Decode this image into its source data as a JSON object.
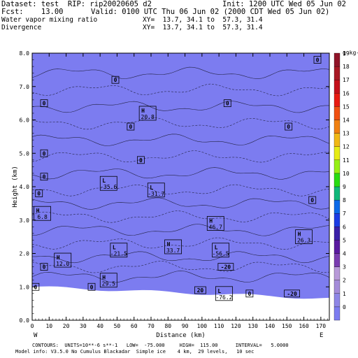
{
  "header": {
    "dataset": "Dataset: test  RIP: rip20020605 d2",
    "init": "Init: 1200 UTC Wed 05 Jun 02",
    "fcst": "Fcst:    13.00",
    "valid": "Valid: 0100 UTC Thu 06 Jun 02 (2000 CDT Wed 05 Jun 02)",
    "field1": "Water vapor mixing ratio",
    "xy1": "XY=  13.7, 34.1 to  57.3, 31.4",
    "field2": "Divergence",
    "xy2": "XY=  13.7, 34.1 to  57.3, 31.4"
  },
  "footer": {
    "line1": "CONTOURS:  UNITS=10**-6 s**-1   LOW=  -75.000     HIGH=  115.00      INTERVAL=   5.0000",
    "line2": "Model info: V3.5.0 No Cumulus Blackadar  Simple ice    4 km,  29 levels,   10 sec"
  },
  "colorbar": {
    "unit": "g kg-1",
    "labels": [
      "0",
      "1",
      "2",
      "3",
      "4",
      "5",
      "6",
      "7",
      "8",
      "9",
      "10",
      "11",
      "12",
      "13",
      "14",
      "15",
      "16",
      "17",
      "18",
      "19"
    ],
    "colors": [
      "#7c7cf0",
      "#8e86e6",
      "#a48cd9",
      "#b89ad8",
      "#7a3cb0",
      "#5a1aa0",
      "#3a20a8",
      "#1c3ce4",
      "#0c6ae8",
      "#10b87a",
      "#28dc10",
      "#96f014",
      "#e6ec14",
      "#f0b814",
      "#f08010",
      "#f05010",
      "#e81a10",
      "#c4101a",
      "#a81824",
      "#901428"
    ],
    "_note": "colors listed bottom (0) to top"
  },
  "chart_data": {
    "type": "heatmap",
    "title": "",
    "xlabel": "Distance (km)",
    "ylabel": "Height (km)",
    "xlim": [
      0,
      175
    ],
    "ylim": [
      0,
      8
    ],
    "xticks": [
      "0",
      "10",
      "20",
      "30",
      "40",
      "50",
      "60",
      "70",
      "80",
      "90",
      "100",
      "110",
      "120",
      "130",
      "140",
      "150",
      "160",
      "170"
    ],
    "yticks": [
      "0.0",
      "1.0",
      "2.0",
      "3.0",
      "4.0",
      "5.0",
      "6.0",
      "7.0",
      "8.0"
    ],
    "x_end_labels": {
      "left": "W",
      "right": "E"
    },
    "bands": [
      {
        "y0": 0.0,
        "y1": 1.8,
        "color": "#96f014"
      },
      {
        "y0": 1.8,
        "y1": 2.6,
        "color": "#28dc10"
      },
      {
        "y0": 2.6,
        "y1": 3.0,
        "color": "#10b87a"
      },
      {
        "y0": 3.0,
        "y1": 3.3,
        "color": "#0c6ae8"
      },
      {
        "y0": 3.3,
        "y1": 3.55,
        "color": "#1c3ce4"
      },
      {
        "y0": 3.55,
        "y1": 3.8,
        "color": "#3a20a8"
      },
      {
        "y0": 3.8,
        "y1": 4.4,
        "color": "#7a3cb0"
      },
      {
        "y0": 4.4,
        "y1": 5.0,
        "color": "#a48cd9"
      },
      {
        "y0": 5.0,
        "y1": 5.6,
        "color": "#8e86e6"
      },
      {
        "y0": 5.6,
        "y1": 6.5,
        "color": "#a48cd9"
      },
      {
        "y0": 6.5,
        "y1": 8.0,
        "color": "#7c7cf0"
      }
    ],
    "markers": [
      {
        "x": 168,
        "y": 7.8,
        "label": "0"
      },
      {
        "x": 49,
        "y": 7.2,
        "label": "0"
      },
      {
        "x": 7,
        "y": 6.5,
        "label": "0"
      },
      {
        "x": 115,
        "y": 6.5,
        "label": "0"
      },
      {
        "x": 58,
        "y": 5.8,
        "label": "0"
      },
      {
        "x": 151,
        "y": 5.8,
        "label": "0"
      },
      {
        "x": 7,
        "y": 5.0,
        "label": "0"
      },
      {
        "x": 64,
        "y": 4.8,
        "label": "0"
      },
      {
        "x": 7,
        "y": 4.3,
        "label": "0"
      },
      {
        "x": 4,
        "y": 3.8,
        "label": "0"
      },
      {
        "x": 165,
        "y": 3.6,
        "label": "0"
      },
      {
        "x": 45,
        "y": 4.1,
        "label": "L",
        "value": "-35.6"
      },
      {
        "x": 73,
        "y": 3.9,
        "label": "L",
        "value": "-31.7"
      },
      {
        "x": 68,
        "y": 6.2,
        "label": "H",
        "value": "20.8"
      },
      {
        "x": 6,
        "y": 3.2,
        "label": "H",
        "value": "6.8"
      },
      {
        "x": 108,
        "y": 2.9,
        "label": "H",
        "value": "46.7"
      },
      {
        "x": 160,
        "y": 2.5,
        "label": "H",
        "value": "26.3"
      },
      {
        "x": 51,
        "y": 2.1,
        "label": "L",
        "value": "-21.5"
      },
      {
        "x": 83,
        "y": 2.2,
        "label": "H",
        "value": "33.7"
      },
      {
        "x": 111,
        "y": 2.1,
        "label": "L",
        "value": "-56.5"
      },
      {
        "x": 18,
        "y": 1.8,
        "label": "H",
        "value": "12.0"
      },
      {
        "x": 7,
        "y": 1.6,
        "label": "0"
      },
      {
        "x": 114,
        "y": 1.6,
        "label": "-20"
      },
      {
        "x": 45,
        "y": 1.2,
        "label": "H",
        "value": "29.5"
      },
      {
        "x": 2,
        "y": 1.0,
        "label": "0"
      },
      {
        "x": 35,
        "y": 1.0,
        "label": "0"
      },
      {
        "x": 99,
        "y": 0.9,
        "label": "20"
      },
      {
        "x": 113,
        "y": 0.8,
        "label": "L",
        "value": "-76.2"
      },
      {
        "x": 128,
        "y": 0.8,
        "label": "0"
      },
      {
        "x": 153,
        "y": 0.8,
        "label": "-20"
      }
    ]
  }
}
